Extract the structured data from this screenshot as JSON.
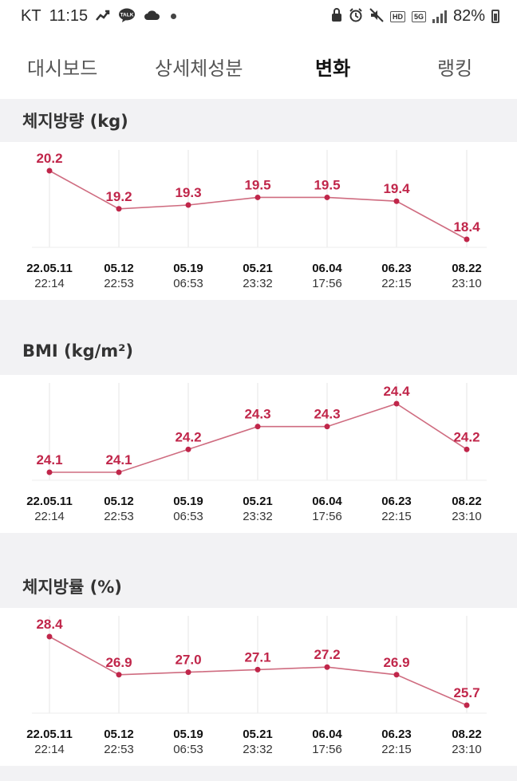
{
  "status_bar": {
    "carrier": "KT",
    "time": "11:15",
    "talk_badge": "TALK",
    "hd_badge": "HD",
    "network_badge": "5G",
    "battery": "82%"
  },
  "tabs": [
    {
      "label": "대시보드",
      "active": false
    },
    {
      "label": "상세체성분",
      "active": false
    },
    {
      "label": "변화",
      "active": true
    },
    {
      "label": "랭킹",
      "active": false
    }
  ],
  "colors": {
    "accent": "#c0264a",
    "line": "#cf6c80",
    "grid": "#e6e6e6",
    "background": "#f2f2f4"
  },
  "sections": [
    {
      "title": "체지방량 (kg)",
      "chart_data": {
        "type": "line",
        "x": [
          "22.05.11 22:14",
          "05.12 22:53",
          "05.19 06:53",
          "05.21 23:32",
          "06.04 17:56",
          "06.23 22:15",
          "08.22 23:10"
        ],
        "date_labels": [
          "22.05.11",
          "05.12",
          "05.19",
          "05.21",
          "06.04",
          "06.23",
          "08.22"
        ],
        "time_labels": [
          "22:14",
          "22:53",
          "06:53",
          "23:32",
          "17:56",
          "22:15",
          "23:10"
        ],
        "values": [
          20.2,
          19.2,
          19.3,
          19.5,
          19.5,
          19.4,
          18.4
        ],
        "value_labels": [
          "20.2",
          "19.2",
          "19.3",
          "19.5",
          "19.5",
          "19.4",
          "18.4"
        ],
        "ylim": [
          18.4,
          20.2
        ]
      }
    },
    {
      "title": "BMI (kg/m²)",
      "chart_data": {
        "type": "line",
        "x": [
          "22.05.11 22:14",
          "05.12 22:53",
          "05.19 06:53",
          "05.21 23:32",
          "06.04 17:56",
          "06.23 22:15",
          "08.22 23:10"
        ],
        "date_labels": [
          "22.05.11",
          "05.12",
          "05.19",
          "05.21",
          "06.04",
          "06.23",
          "08.22"
        ],
        "time_labels": [
          "22:14",
          "22:53",
          "06:53",
          "23:32",
          "17:56",
          "22:15",
          "23:10"
        ],
        "values": [
          24.1,
          24.1,
          24.2,
          24.3,
          24.3,
          24.4,
          24.2
        ],
        "value_labels": [
          "24.1",
          "24.1",
          "24.2",
          "24.3",
          "24.3",
          "24.4",
          "24.2"
        ],
        "ylim": [
          24.1,
          24.4
        ]
      }
    },
    {
      "title": "체지방률 (%)",
      "chart_data": {
        "type": "line",
        "x": [
          "22.05.11 22:14",
          "05.12 22:53",
          "05.19 06:53",
          "05.21 23:32",
          "06.04 17:56",
          "06.23 22:15",
          "08.22 23:10"
        ],
        "date_labels": [
          "22.05.11",
          "05.12",
          "05.19",
          "05.21",
          "06.04",
          "06.23",
          "08.22"
        ],
        "time_labels": [
          "22:14",
          "22:53",
          "06:53",
          "23:32",
          "17:56",
          "22:15",
          "23:10"
        ],
        "values": [
          28.4,
          26.9,
          27.0,
          27.1,
          27.2,
          26.9,
          25.7
        ],
        "value_labels": [
          "28.4",
          "26.9",
          "27.0",
          "27.1",
          "27.2",
          "26.9",
          "25.7"
        ],
        "ylim": [
          25.7,
          28.4
        ]
      }
    }
  ]
}
